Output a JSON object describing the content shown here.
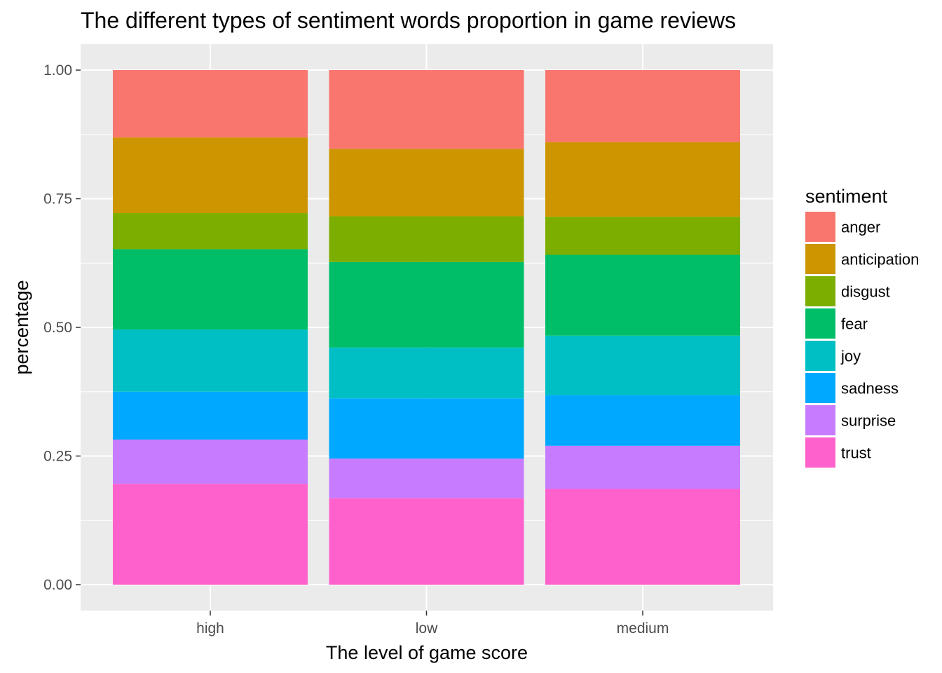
{
  "chart_data": {
    "type": "bar",
    "stacked": true,
    "title": "The different types of sentiment words proportion in game reviews",
    "xlabel": "The level of game score",
    "ylabel": "percentage",
    "categories": [
      "high",
      "low",
      "medium"
    ],
    "ylim": [
      0,
      1
    ],
    "yticks": [
      0,
      0.25,
      0.5,
      0.75,
      1
    ],
    "ytick_labels": [
      "0.00",
      "0.25",
      "0.50",
      "0.75",
      "1.00"
    ],
    "grid": true,
    "legend": {
      "title": "sentiment",
      "position": "right"
    },
    "series": [
      {
        "name": "trust",
        "color": "#FF61CC",
        "values": [
          0.196,
          0.168,
          0.186
        ]
      },
      {
        "name": "surprise",
        "color": "#C77CFF",
        "values": [
          0.086,
          0.077,
          0.084
        ]
      },
      {
        "name": "sadness",
        "color": "#00A9FF",
        "values": [
          0.093,
          0.117,
          0.098
        ]
      },
      {
        "name": "joy",
        "color": "#00BFC4",
        "values": [
          0.121,
          0.099,
          0.116
        ]
      },
      {
        "name": "fear",
        "color": "#00BE67",
        "values": [
          0.156,
          0.166,
          0.157
        ]
      },
      {
        "name": "disgust",
        "color": "#7CAE00",
        "values": [
          0.07,
          0.089,
          0.074
        ]
      },
      {
        "name": "anticipation",
        "color": "#CD9600",
        "values": [
          0.147,
          0.131,
          0.145
        ]
      },
      {
        "name": "anger",
        "color": "#F8766D",
        "values": [
          0.131,
          0.153,
          0.14
        ]
      }
    ]
  }
}
